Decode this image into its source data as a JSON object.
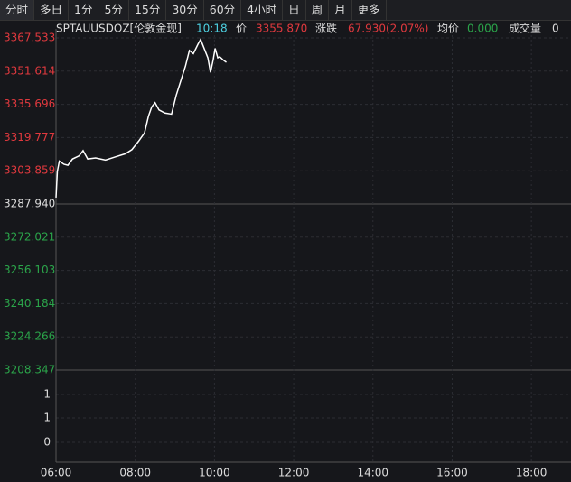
{
  "toolbar": {
    "tabs": [
      "分时",
      "多日",
      "1分",
      "5分",
      "15分",
      "30分",
      "60分",
      "4小时",
      "日",
      "周",
      "月",
      "更多"
    ]
  },
  "header": {
    "symbol": "SPTAUUSDOZ[伦敦金现]",
    "time": "10:18",
    "price_label": "价",
    "price": "3355.870",
    "change_label": "涨跌",
    "change": "67.930(2.07%)",
    "avg_label": "均价",
    "avg": "0.000",
    "volume_label": "成交量",
    "volume": "0"
  },
  "chart_data": {
    "type": "line",
    "color": "#ffffff",
    "up_color": "#e0393e",
    "down_color": "#2ba44a",
    "baseline": 3287.94,
    "x": [
      "06:00",
      "06:02",
      "06:05",
      "06:12",
      "06:18",
      "06:25",
      "06:35",
      "06:41",
      "06:48",
      "07:00",
      "07:15",
      "07:30",
      "07:45",
      "07:55",
      "08:05",
      "08:14",
      "08:20",
      "08:25",
      "08:30",
      "08:36",
      "08:45",
      "08:55",
      "09:02",
      "09:09",
      "09:16",
      "09:22",
      "09:28",
      "09:35",
      "09:39",
      "09:45",
      "09:50",
      "09:54",
      "09:58",
      "10:01",
      "10:05",
      "10:08",
      "10:13",
      "10:18"
    ],
    "values": [
      3291.0,
      3303.5,
      3308.5,
      3307.0,
      3306.5,
      3309.5,
      3311.0,
      3313.5,
      3309.5,
      3310.0,
      3309.0,
      3310.5,
      3312.0,
      3314.0,
      3318.0,
      3322.0,
      3330.0,
      3334.5,
      3336.5,
      3333.0,
      3331.5,
      3331.0,
      3340.0,
      3347.0,
      3354.0,
      3361.5,
      3360.0,
      3364.5,
      3366.8,
      3362.0,
      3358.0,
      3351.0,
      3357.0,
      3362.5,
      3358.0,
      3358.5,
      3357.0,
      3355.87
    ],
    "xlim": [
      "06:00",
      "19:00"
    ],
    "xticks": [
      "06:00",
      "08:00",
      "10:00",
      "12:00",
      "14:00",
      "16:00",
      "18:00"
    ],
    "ylim": [
      3208.347,
      3367.533
    ],
    "yticks": [
      3367.533,
      3351.614,
      3335.696,
      3319.777,
      3303.859,
      {
        "value": 3287.94,
        "label": "3287.940"
      },
      3272.021,
      3256.103,
      3240.184,
      3224.266,
      3208.347
    ],
    "volume_labels": [
      "1",
      "1",
      "0"
    ],
    "grid": true
  }
}
